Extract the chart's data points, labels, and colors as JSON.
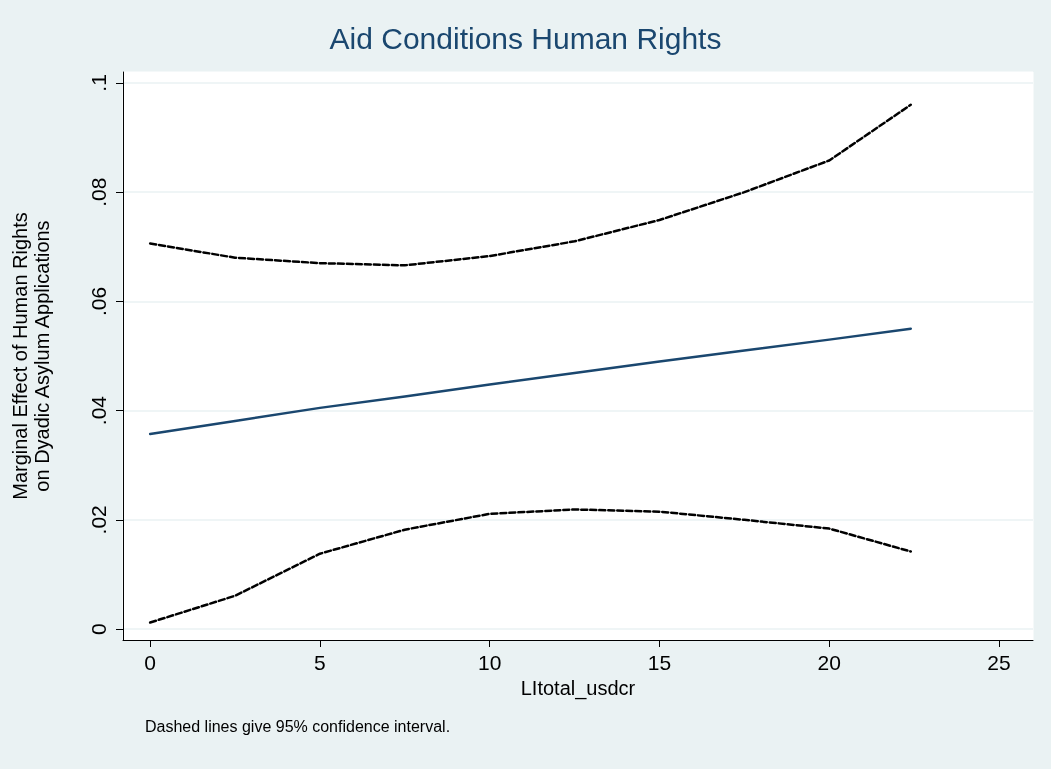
{
  "chart_data": {
    "type": "line",
    "title": "Aid Conditions Human Rights",
    "xlabel": "LItotal_usdcr",
    "ylabel": "Marginal Effect of Human Rights\non Dyadic Asylum Applications",
    "annotations": [
      "Dashed lines give 95% confidence interval."
    ],
    "x": [
      0,
      2.5,
      5,
      7.5,
      10,
      12.5,
      15,
      17.5,
      20,
      22.4
    ],
    "series": [
      {
        "color": "#1a476f",
        "line_style": "solid",
        "values": [
          0.0357,
          0.0381,
          0.0405,
          0.0426,
          0.0448,
          0.0469,
          0.049,
          0.051,
          0.053,
          0.055
        ]
      },
      {
        "color": "#000000",
        "line_style": "dashed",
        "values": [
          0.0706,
          0.068,
          0.067,
          0.0666,
          0.0683,
          0.071,
          0.0749,
          0.08,
          0.0858,
          0.096
        ]
      },
      {
        "color": "#000000",
        "line_style": "dashed",
        "values": [
          0.0012,
          0.0061,
          0.0138,
          0.0182,
          0.0211,
          0.0219,
          0.0215,
          0.02,
          0.0184,
          0.0142
        ]
      }
    ],
    "xlim": [
      -0.8,
      26
    ],
    "xticks": [
      0,
      5,
      10,
      15,
      20,
      25
    ],
    "ylim": [
      -0.002,
      0.102
    ],
    "yticks": [
      {
        "value": 0,
        "label": "0"
      },
      {
        "value": 0.02,
        "label": ".02"
      },
      {
        "value": 0.04,
        "label": ".04"
      },
      {
        "value": 0.06,
        "label": ".06"
      },
      {
        "value": 0.08,
        "label": ".08"
      },
      {
        "value": 0.1,
        "label": ".1"
      }
    ],
    "grid": "y",
    "marker": "none"
  }
}
